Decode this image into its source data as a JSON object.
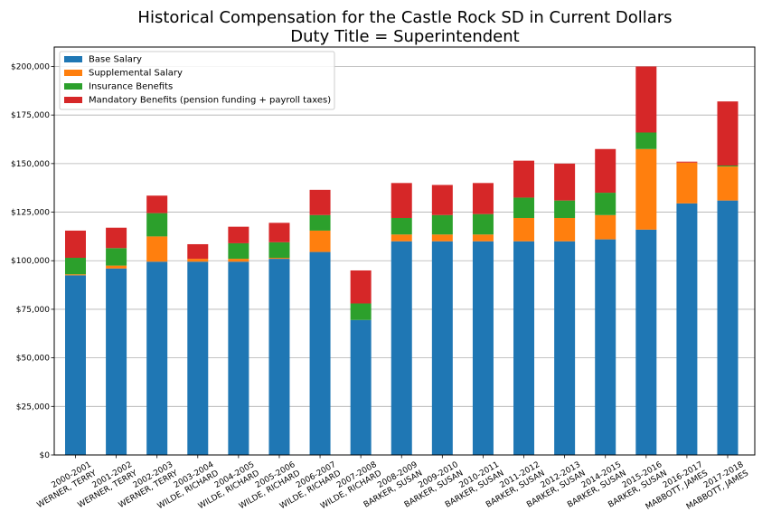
{
  "chart_data": {
    "type": "bar",
    "stacked": true,
    "title": "Historical Compensation for the Castle Rock SD in Current Dollars",
    "subtitle": "Duty Title = Superintendent",
    "xlabel": "",
    "ylabel": "",
    "ylim": [
      0,
      210000
    ],
    "yticks": [
      "$0",
      "$25,000",
      "$50,000",
      "$75,000",
      "$100,000",
      "$125,000",
      "$150,000",
      "$175,000",
      "$200,000"
    ],
    "ytick_values": [
      0,
      25000,
      50000,
      75000,
      100000,
      125000,
      150000,
      175000,
      200000
    ],
    "grid": "horizontal",
    "legend_position": "top-left",
    "categories": [
      [
        "2000-2001",
        "WERNER, TERRY"
      ],
      [
        "2001-2002",
        "WERNER, TERRY"
      ],
      [
        "2002-2003",
        "WERNER, TERRY"
      ],
      [
        "2003-2004",
        "WILDE, RICHARD"
      ],
      [
        "2004-2005",
        "WILDE, RICHARD"
      ],
      [
        "2005-2006",
        "WILDE, RICHARD"
      ],
      [
        "2006-2007",
        "WILDE, RICHARD"
      ],
      [
        "2007-2008",
        "WILDE, RICHARD"
      ],
      [
        "2008-2009",
        "BARKER, SUSAN"
      ],
      [
        "2009-2010",
        "BARKER, SUSAN"
      ],
      [
        "2010-2011",
        "BARKER, SUSAN"
      ],
      [
        "2011-2012",
        "BARKER, SUSAN"
      ],
      [
        "2012-2013",
        "BARKER, SUSAN"
      ],
      [
        "2014-2015",
        "BARKER, SUSAN"
      ],
      [
        "2015-2016",
        "BARKER, SUSAN"
      ],
      [
        "2016-2017",
        "MABBOTT, JAMES"
      ],
      [
        "2017-2018",
        "MABBOTT, JAMES"
      ]
    ],
    "series": [
      {
        "name": "Base Salary",
        "color": "#1f77b4",
        "values": [
          92500,
          96000,
          99500,
          99500,
          99500,
          101000,
          104500,
          69500,
          110000,
          110000,
          110000,
          110000,
          110000,
          111000,
          116000,
          129500,
          131000
        ]
      },
      {
        "name": "Supplemental Salary",
        "color": "#ff7f0e",
        "values": [
          500,
          1500,
          13000,
          1500,
          1500,
          500,
          11000,
          0,
          3500,
          3500,
          3500,
          12000,
          12000,
          12500,
          41500,
          21000,
          17500
        ]
      },
      {
        "name": "Insurance Benefits",
        "color": "#2ca02c",
        "values": [
          8500,
          9000,
          12000,
          0,
          8000,
          8000,
          8000,
          8500,
          8500,
          10000,
          10500,
          10500,
          9000,
          11500,
          8500,
          0,
          500
        ]
      },
      {
        "name": "Mandatory Benefits (pension funding + payroll taxes)",
        "color": "#d62728",
        "values": [
          14000,
          10500,
          9000,
          7500,
          8500,
          10000,
          13000,
          17000,
          18000,
          15500,
          16000,
          19000,
          19000,
          22500,
          34000,
          500,
          33000
        ]
      }
    ]
  }
}
